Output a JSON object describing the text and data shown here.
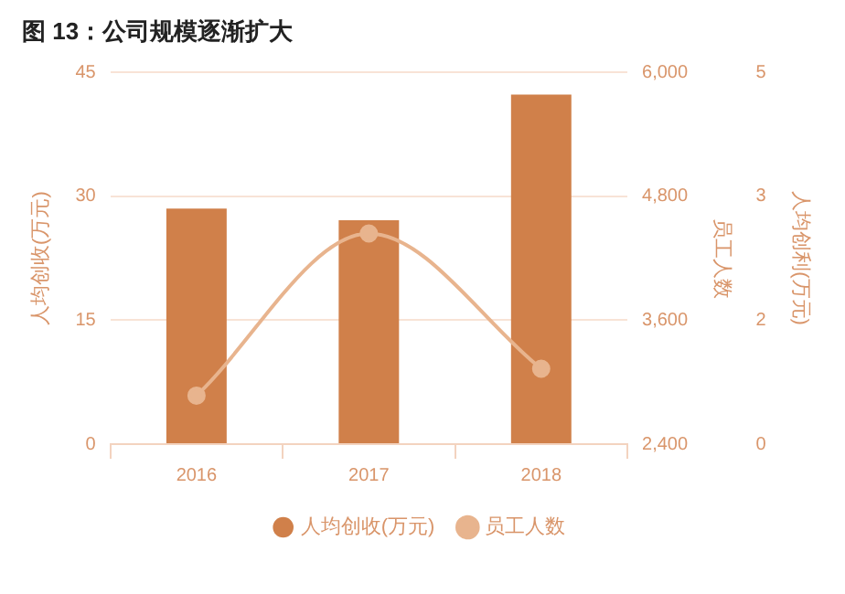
{
  "chart_data": {
    "type": "bar",
    "title": "图 13：公司规模逐渐扩大",
    "categories": [
      "2016",
      "2017",
      "2018"
    ],
    "series": [
      {
        "name": "人均创收(万元)",
        "color": "#d0804a",
        "values": [
          28.5,
          27.1,
          42.3
        ]
      },
      {
        "name": "员工人数",
        "type": "line",
        "axis": "y2",
        "color": "#e8b48e",
        "values": [
          2870,
          4440,
          3130
        ]
      }
    ],
    "ylabel": "人均创收(万元)",
    "y2label": "员工人数",
    "y3label": "人均创利(万元)",
    "ylim": [
      0,
      45
    ],
    "yticks": [
      0,
      15,
      30,
      45
    ],
    "y2lim": [
      2400,
      6000
    ],
    "y2ticks": [
      {
        "value": 2400,
        "label": "2,400"
      },
      {
        "value": 3600,
        "label": "3,600"
      },
      {
        "value": 4800,
        "label": "4,800"
      },
      {
        "value": 6000,
        "label": "6,000"
      }
    ],
    "y3lim": [
      0,
      5
    ],
    "y3ticks": [
      0,
      {
        "value": 1.6667,
        "label": "2"
      },
      {
        "value": 3.3333,
        "label": "3"
      },
      5
    ],
    "grid": "y",
    "legend": "bottom",
    "marker": "circle"
  }
}
